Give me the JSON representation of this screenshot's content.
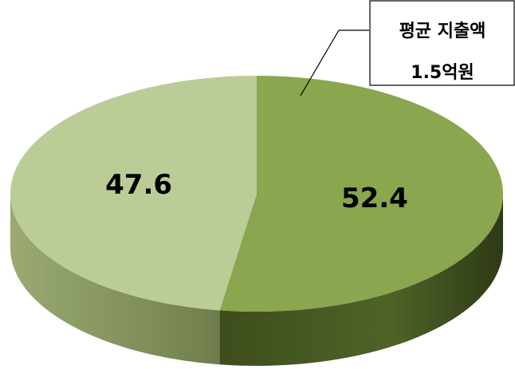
{
  "chart_data": {
    "type": "pie",
    "values": [
      52.4,
      47.6
    ],
    "colors": [
      "#8aa64e",
      "#bccc96"
    ],
    "annotation": [
      "평균 지출액",
      "1.5억원"
    ]
  }
}
